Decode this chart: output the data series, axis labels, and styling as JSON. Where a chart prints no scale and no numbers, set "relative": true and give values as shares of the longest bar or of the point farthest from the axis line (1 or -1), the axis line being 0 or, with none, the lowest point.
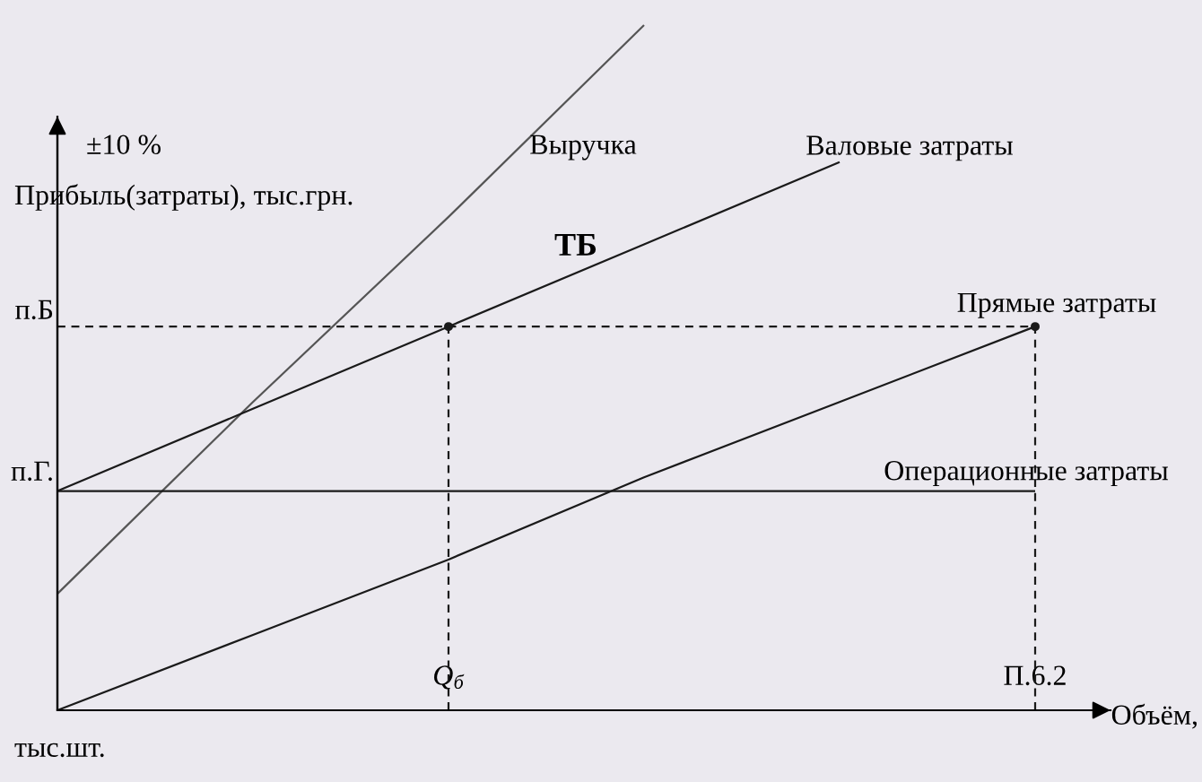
{
  "chart_data": {
    "type": "line",
    "relative": true,
    "ylabel": "Прибыль(затраты), тыс.грн.",
    "xlabel": "Объём, тыс.шт.",
    "categories": [
      null,
      null,
      "Q$_{б}$",
      null,
      null,
      "П.6.2"
    ],
    "annotations": [
      "±10 %",
      "ТБ",
      "п.Б",
      "п.Г."
    ],
    "series": [
      {
        "name": "Выручка",
        "color": "#555555",
        "values": [
          0.17,
          0.45,
          0.72,
          1,
          null,
          null
        ]
      },
      {
        "name": "Валовые затраты",
        "color": "#1a1a1a",
        "values": [
          0.32,
          0.44,
          0.56,
          0.68,
          0.8,
          null
        ]
      },
      {
        "name": "Прямые затраты",
        "color": "#1a1a1a",
        "values": [
          0,
          0.11,
          0.22,
          0.34,
          0.45,
          0.56
        ]
      },
      {
        "name": "Операционные затраты",
        "color": "#1a1a1a",
        "values": [
          0.32,
          0.32,
          0.32,
          0.32,
          0.32,
          0.32
        ]
      },
      {
        "color": "#1a1a1a",
        "line_style": "dashed",
        "values": [
          0.56,
          0.56,
          0.56,
          0.56,
          0.56,
          0.56
        ]
      },
      {
        "type": "lollipop",
        "color": "#1a1a1a",
        "line_style": "dashed",
        "marker": "circle",
        "values": [
          null,
          null,
          0.56,
          null,
          null,
          0.56
        ]
      }
    ]
  }
}
